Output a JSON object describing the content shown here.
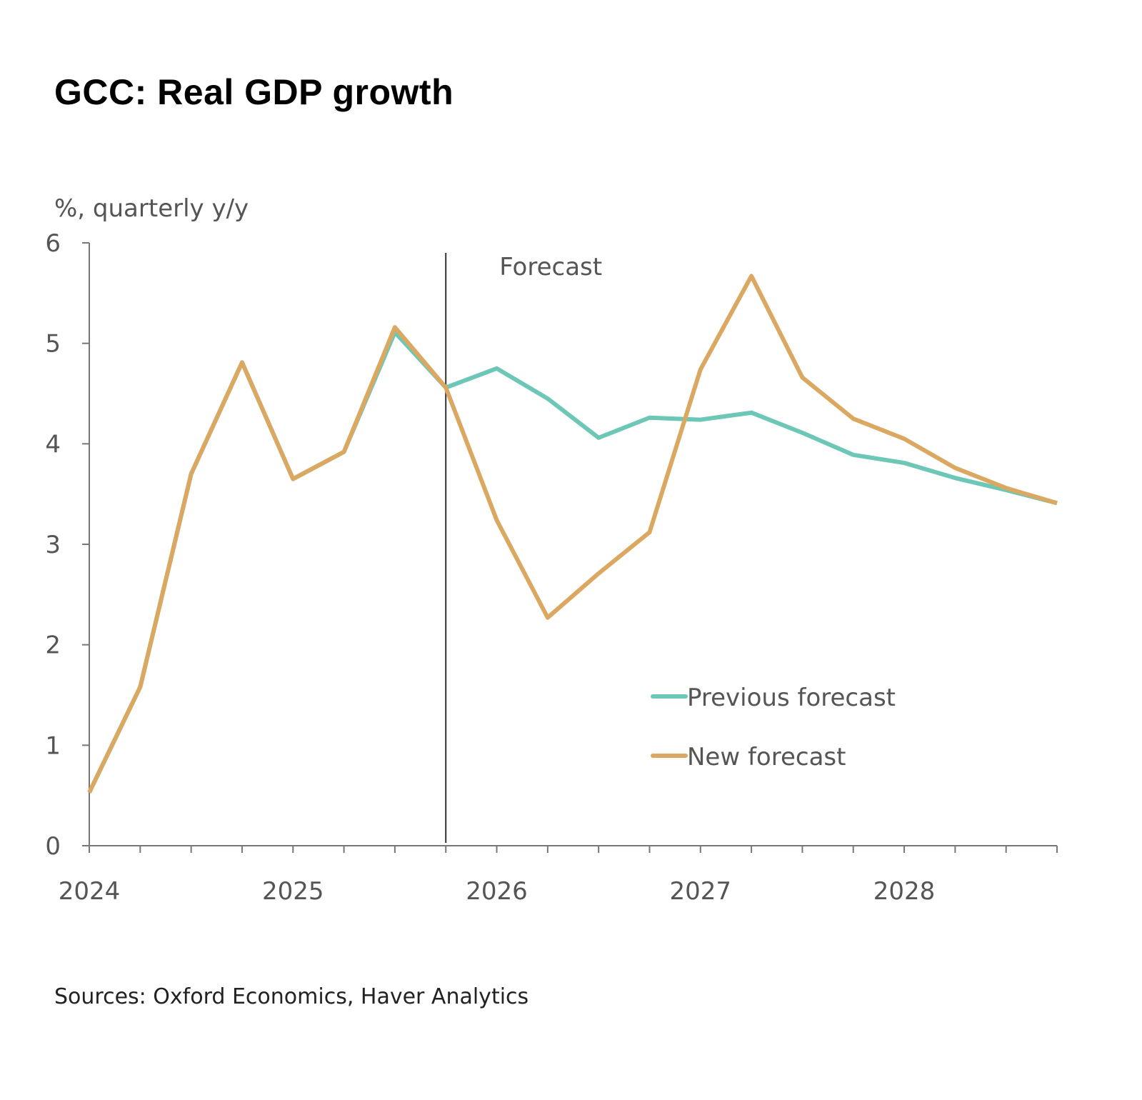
{
  "chart_data": {
    "type": "line",
    "title": "GCC: Real GDP growth",
    "ylabel": "%, quarterly y/y",
    "xlabel": "",
    "source": "Sources: Oxford Economics, Haver Analytics",
    "annotation": "Forecast",
    "forecast_start": "2025 Q4",
    "x": [
      "2024 Q1",
      "2024 Q2",
      "2024 Q3",
      "2024 Q4",
      "2025 Q1",
      "2025 Q2",
      "2025 Q3",
      "2025 Q4",
      "2026 Q1",
      "2026 Q2",
      "2026 Q3",
      "2026 Q4",
      "2027 Q1",
      "2027 Q2",
      "2027 Q3",
      "2027 Q4",
      "2028 Q1",
      "2028 Q2",
      "2028 Q3",
      "2028 Q4"
    ],
    "x_tick_labels": [
      "2024",
      "2025",
      "2026",
      "2027",
      "2028"
    ],
    "y_ticks": [
      0,
      1,
      2,
      3,
      4,
      5,
      6
    ],
    "ylim": [
      0,
      6
    ],
    "grid": false,
    "legend_placement": "center-right",
    "series": [
      {
        "name": "Previous forecast",
        "color": "#6cc7b6",
        "values": [
          0.53,
          1.58,
          3.7,
          4.81,
          3.65,
          3.92,
          5.11,
          4.56,
          4.75,
          4.45,
          4.06,
          4.26,
          4.24,
          4.31,
          4.11,
          3.89,
          3.81,
          3.66,
          3.54,
          3.41
        ]
      },
      {
        "name": "New forecast",
        "color": "#dba862",
        "values": [
          0.53,
          1.58,
          3.7,
          4.81,
          3.65,
          3.92,
          5.16,
          4.56,
          3.24,
          2.27,
          2.71,
          3.12,
          4.74,
          5.67,
          4.66,
          4.25,
          4.05,
          3.76,
          3.56,
          3.41
        ]
      }
    ]
  }
}
